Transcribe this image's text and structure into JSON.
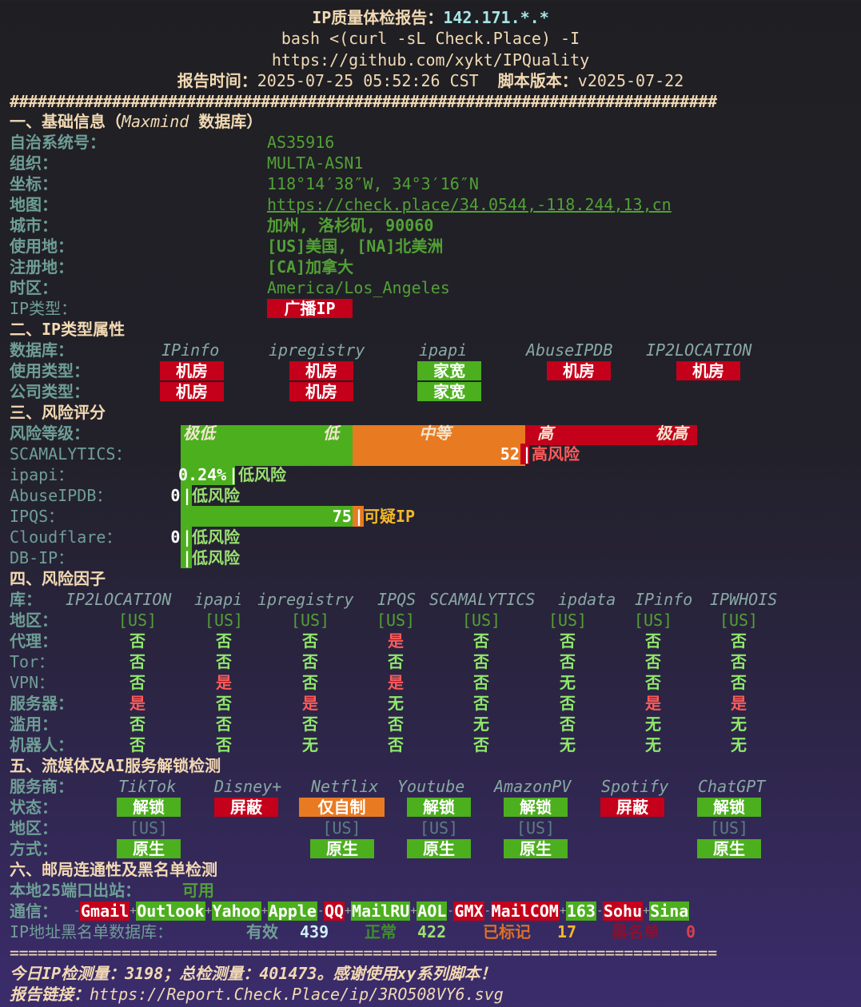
{
  "header": {
    "title_label": "IP质量体检报告：",
    "ip": "142.171.*.*",
    "command": "bash <(curl -sL Check.Place) -I",
    "repo_url": "https://github.com/xykt/IPQuality",
    "time_label": "报告时间：",
    "time": "2025-07-25 05:52:26 CST",
    "version_label": "脚本版本：",
    "version": "v2025-07-22",
    "divider": "############################################################################"
  },
  "basic": {
    "title": "一、基础信息（",
    "title_db": "Maxmind",
    "title_end": " 数据库）",
    "rows": [
      {
        "label": "自治系统号：",
        "value": "AS35916"
      },
      {
        "label": "组织：",
        "value": "MULTA-ASN1"
      },
      {
        "label": "坐标：",
        "value": "118°14′38″W, 34°3′16″N"
      },
      {
        "label": "地图：",
        "value": "https://check.place/34.0544,-118.244,13,cn"
      },
      {
        "label": "城市：",
        "value": "加州, 洛杉矶, 90060"
      },
      {
        "label": "使用地：",
        "value": "[US]美国, [NA]北美洲"
      },
      {
        "label": "注册地：",
        "value": "[CA]加拿大"
      },
      {
        "label": "时区：",
        "value": "America/Los_Angeles"
      }
    ],
    "ip_type_label": "IP类型：",
    "ip_type": "广播IP"
  },
  "ip_type": {
    "title": "二、IP类型属性",
    "db_label": "数据库：",
    "dbs": [
      "IPinfo",
      "ipregistry",
      "ipapi",
      "AbuseIPDB",
      "IP2LOCATION"
    ],
    "usage_label": "使用类型：",
    "usage": [
      "机房",
      "机房",
      "家宽",
      "机房",
      "机房"
    ],
    "company_label": "公司类型：",
    "company": [
      "机房",
      "机房",
      "家宽"
    ]
  },
  "risk": {
    "title": "三、风险评分",
    "level_label": "风险等级：",
    "levels": [
      "极低",
      "低",
      "中等",
      "高",
      "极高"
    ],
    "rows": [
      {
        "label": "SCAMALYTICS：",
        "score": "52",
        "verdict": "高风险",
        "fill": 52
      },
      {
        "label": "ipapi：",
        "score": "0.24%",
        "verdict": "低风险",
        "fill": 0.24
      },
      {
        "label": "AbuseIPDB：",
        "score": "0",
        "verdict": "低风险",
        "fill": 0
      },
      {
        "label": "IPQS：",
        "score": "75",
        "verdict": "可疑IP",
        "fill": 75
      },
      {
        "label": "Cloudflare：",
        "score": "0",
        "verdict": "低风险",
        "fill": 0
      },
      {
        "label": "DB-IP：",
        "score": "",
        "verdict": "低风险",
        "fill": 0
      }
    ]
  },
  "factors": {
    "title": "四、风险因子",
    "lib_label": "库：",
    "libs": [
      "IP2LOCATION",
      "ipapi",
      "ipregistry",
      "IPQS",
      "SCAMALYTICS",
      "ipdata",
      "IPinfo",
      "IPWHOIS"
    ],
    "rows": [
      {
        "label": "地区：",
        "values": [
          "[US]",
          "[US]",
          "[US]",
          "[US]",
          "[US]",
          "[US]",
          "[US]",
          "[US]"
        ]
      },
      {
        "label": "代理：",
        "values": [
          "否",
          "否",
          "否",
          "是",
          "否",
          "否",
          "否",
          "否"
        ]
      },
      {
        "label": "Tor：",
        "values": [
          "否",
          "否",
          "否",
          "否",
          "否",
          "否",
          "否",
          "否"
        ]
      },
      {
        "label": "VPN：",
        "values": [
          "否",
          "是",
          "否",
          "是",
          "否",
          "无",
          "否",
          "否"
        ]
      },
      {
        "label": "服务器：",
        "values": [
          "是",
          "否",
          "是",
          "无",
          "否",
          "否",
          "是",
          "是"
        ]
      },
      {
        "label": "滥用：",
        "values": [
          "否",
          "否",
          "否",
          "否",
          "无",
          "否",
          "无",
          "无"
        ]
      },
      {
        "label": "机器人：",
        "values": [
          "否",
          "否",
          "无",
          "否",
          "否",
          "无",
          "无",
          "无"
        ]
      }
    ]
  },
  "streaming": {
    "title": "五、流媒体及AI服务解锁检测",
    "service_label": "服务商：",
    "status_label": "状态：",
    "region_label": "地区：",
    "method_label": "方式：",
    "services": [
      {
        "name": "TikTok",
        "status": "解锁",
        "region": "[US]",
        "method": "原生"
      },
      {
        "name": "Disney+",
        "status": "屏蔽",
        "region": "",
        "method": ""
      },
      {
        "name": "Netflix",
        "status": "仅自制",
        "region": "[US]",
        "method": "原生"
      },
      {
        "name": "Youtube",
        "status": "解锁",
        "region": "[US]",
        "method": "原生"
      },
      {
        "name": "AmazonPV",
        "status": "解锁",
        "region": "[US]",
        "method": "原生"
      },
      {
        "name": "Spotify",
        "status": "屏蔽",
        "region": "",
        "method": ""
      },
      {
        "name": "ChatGPT",
        "status": "解锁",
        "region": "[US]",
        "method": "原生"
      }
    ]
  },
  "mail": {
    "title": "六、邮局连通性及黑名单检测",
    "port25_label": "本地25端口出站：",
    "port25": "可用",
    "comm_label": "通信：",
    "providers": [
      {
        "name": "Gmail",
        "ok": false
      },
      {
        "name": "Outlook",
        "ok": true
      },
      {
        "name": "Yahoo",
        "ok": true
      },
      {
        "name": "Apple",
        "ok": true
      },
      {
        "name": "QQ",
        "ok": false
      },
      {
        "name": "MailRU",
        "ok": true
      },
      {
        "name": "AOL",
        "ok": true
      },
      {
        "name": "GMX",
        "ok": false
      },
      {
        "name": "MailCOM",
        "ok": false
      },
      {
        "name": "163",
        "ok": true
      },
      {
        "name": "Sohu",
        "ok": false
      },
      {
        "name": "Sina",
        "ok": true
      }
    ],
    "bl_label": "IP地址黑名单数据库：",
    "valid_label": "有效",
    "valid": "439",
    "clean_label": "正常",
    "clean": "422",
    "marked_label": "已标记",
    "marked": "17",
    "black_label": "黑名单",
    "black": "0"
  },
  "footer": {
    "divider": "============================================================================",
    "stats": "今日IP检测量：3198；总检测量：401473。感谢使用xy系列脚本！",
    "link_label": "报告链接：",
    "link": "https://Report.Check.Place/ip/3RO508VY6.svg"
  },
  "colors": {
    "green": "#4caf1e",
    "red": "#c4001a",
    "orange": "#e87a22"
  }
}
